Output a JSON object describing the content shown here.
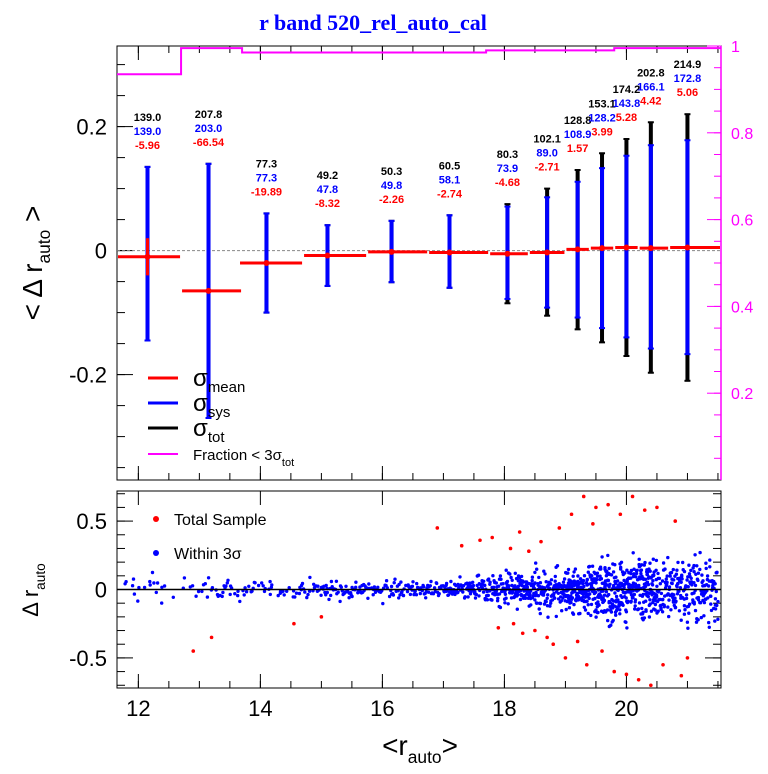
{
  "chart_data": [
    {
      "type": "scatter",
      "panel": "top",
      "title": "r band 520_rel_auto_cal",
      "ylabel_main": "< Δ r",
      "ylabel_sub": "auto",
      "ylabel_end": " >",
      "xlim": [
        11.65,
        21.55
      ],
      "ylim": [
        -0.37,
        0.33
      ],
      "xticks": [
        12,
        14,
        16,
        18,
        20
      ],
      "yticks": [
        0.2,
        0,
        -0.2
      ],
      "ytick_labels": [
        "0.2",
        "0",
        "-0.2"
      ],
      "right_axis": {
        "ylim": [
          0.0,
          1.0
        ],
        "ticks": [
          0.2,
          0.4,
          0.6,
          0.8,
          1
        ],
        "tick_labels": [
          "0.2",
          "0.4",
          "0.6",
          "0.8",
          "1"
        ],
        "color": "#ff00ff"
      },
      "bins": [
        {
          "x": 12.15,
          "xlo": 11.65,
          "xhi": 12.7,
          "mean": -0.01,
          "sigma_mean": 0.03,
          "sys_lo": -0.145,
          "sys_hi": 0.135,
          "tot_lo": -0.145,
          "tot_hi": 0.135,
          "labels": [
            "139.0",
            "139.0",
            "-5.96"
          ]
        },
        {
          "x": 13.15,
          "xlo": 12.7,
          "xhi": 13.7,
          "mean": -0.065,
          "sigma_mean": 0.0,
          "sys_lo": -0.27,
          "sys_hi": 0.14,
          "tot_lo": -0.27,
          "tot_hi": 0.14,
          "labels": [
            "207.8",
            "203.0",
            "-66.54"
          ]
        },
        {
          "x": 14.1,
          "xlo": 13.65,
          "xhi": 14.7,
          "mean": -0.02,
          "sigma_mean": 0.0,
          "sys_lo": -0.1,
          "sys_hi": 0.06,
          "tot_lo": -0.1,
          "tot_hi": 0.06,
          "labels": [
            "77.3",
            "77.3",
            "-19.89"
          ]
        },
        {
          "x": 15.1,
          "xlo": 14.7,
          "xhi": 15.75,
          "mean": -0.008,
          "sigma_mean": 0.0,
          "sys_lo": -0.057,
          "sys_hi": 0.041,
          "tot_lo": -0.057,
          "tot_hi": 0.041,
          "labels": [
            "49.2",
            "47.8",
            "-8.32"
          ]
        },
        {
          "x": 16.15,
          "xlo": 15.75,
          "xhi": 16.75,
          "mean": -0.002,
          "sigma_mean": 0.0,
          "sys_lo": -0.051,
          "sys_hi": 0.048,
          "tot_lo": -0.051,
          "tot_hi": 0.048,
          "labels": [
            "50.3",
            "49.8",
            "-2.26"
          ]
        },
        {
          "x": 17.1,
          "xlo": 16.75,
          "xhi": 17.75,
          "mean": -0.003,
          "sigma_mean": 0.0,
          "sys_lo": -0.06,
          "sys_hi": 0.057,
          "tot_lo": -0.06,
          "tot_hi": 0.057,
          "labels": [
            "60.5",
            "58.1",
            "-2.74"
          ]
        },
        {
          "x": 18.05,
          "xlo": 17.75,
          "xhi": 18.4,
          "mean": -0.005,
          "sigma_mean": 0.0,
          "sys_lo": -0.078,
          "sys_hi": 0.071,
          "tot_lo": -0.085,
          "tot_hi": 0.075,
          "labels": [
            "80.3",
            "73.9",
            "-4.68"
          ]
        },
        {
          "x": 18.7,
          "xlo": 18.4,
          "xhi": 19.0,
          "mean": -0.003,
          "sigma_mean": 0.0,
          "sys_lo": -0.092,
          "sys_hi": 0.086,
          "tot_lo": -0.105,
          "tot_hi": 0.1,
          "labels": [
            "102.1",
            "89.0",
            "-2.71"
          ]
        },
        {
          "x": 19.2,
          "xlo": 19.0,
          "xhi": 19.4,
          "mean": 0.002,
          "sigma_mean": 0.0,
          "sys_lo": -0.108,
          "sys_hi": 0.111,
          "tot_lo": -0.127,
          "tot_hi": 0.13,
          "labels": [
            "128.8",
            "108.9",
            "1.57"
          ]
        },
        {
          "x": 19.6,
          "xlo": 19.4,
          "xhi": 19.8,
          "mean": 0.004,
          "sigma_mean": 0.0,
          "sys_lo": -0.125,
          "sys_hi": 0.133,
          "tot_lo": -0.148,
          "tot_hi": 0.157,
          "labels": [
            "153.1",
            "128.2",
            "3.99"
          ]
        },
        {
          "x": 20.0,
          "xlo": 19.8,
          "xhi": 20.2,
          "mean": 0.005,
          "sigma_mean": 0.0,
          "sys_lo": -0.14,
          "sys_hi": 0.153,
          "tot_lo": -0.17,
          "tot_hi": 0.18,
          "labels": [
            "174.2",
            "143.8",
            "5.28"
          ]
        },
        {
          "x": 20.4,
          "xlo": 20.2,
          "xhi": 20.7,
          "mean": 0.004,
          "sigma_mean": 0.0,
          "sys_lo": -0.158,
          "sys_hi": 0.17,
          "tot_lo": -0.197,
          "tot_hi": 0.207,
          "labels": [
            "202.8",
            "166.1",
            "4.42"
          ]
        },
        {
          "x": 21.0,
          "xlo": 20.7,
          "xhi": 21.55,
          "mean": 0.005,
          "sigma_mean": 0.0,
          "sys_lo": -0.167,
          "sys_hi": 0.178,
          "tot_lo": -0.21,
          "tot_hi": 0.22,
          "labels": [
            "214.9",
            "172.8",
            "5.06"
          ]
        }
      ],
      "fraction_steps": [
        {
          "xlo": 11.65,
          "xhi": 12.7,
          "value": 0.935
        },
        {
          "xlo": 12.7,
          "xhi": 13.7,
          "value": 0.995
        },
        {
          "xlo": 13.7,
          "xhi": 16.6,
          "value": 0.985
        },
        {
          "xlo": 16.6,
          "xhi": 17.7,
          "value": 0.985
        },
        {
          "xlo": 17.7,
          "xhi": 18.7,
          "value": 0.99
        },
        {
          "xlo": 18.7,
          "xhi": 19.8,
          "value": 0.99
        },
        {
          "xlo": 19.8,
          "xhi": 21.55,
          "value": 0.995
        }
      ],
      "legend": [
        {
          "name": "σ",
          "sub": "mean",
          "color": "#ff0000",
          "kind": "line"
        },
        {
          "name": "σ",
          "sub": "sys",
          "color": "#0000ff",
          "kind": "line"
        },
        {
          "name": "σ",
          "sub": "tot",
          "color": "#000000",
          "kind": "line"
        },
        {
          "name": "Fraction < 3σ",
          "sub": "tot",
          "color": "#ff00ff",
          "kind": "line"
        }
      ],
      "colors": {
        "mean": "#ff0000",
        "sys": "#0000ff",
        "tot": "#000000",
        "fraction": "#ff00ff",
        "label_top": "#000000",
        "label_mid": "#0000ff",
        "label_bot": "#ff0000"
      }
    },
    {
      "type": "scatter",
      "panel": "bottom",
      "xlabel_main": "<r",
      "xlabel_sub": "auto",
      "xlabel_end": ">",
      "ylabel_main": "Δ r",
      "ylabel_sub": "auto",
      "xlim": [
        11.65,
        21.55
      ],
      "ylim": [
        -0.72,
        0.72
      ],
      "xticks": [
        12,
        14,
        16,
        18,
        20
      ],
      "xtick_labels": [
        "12",
        "14",
        "16",
        "18",
        "20"
      ],
      "yticks": [
        0.5,
        0,
        -0.5
      ],
      "ytick_labels": [
        "0.5",
        "0",
        "-0.5"
      ],
      "legend": [
        {
          "name": "Total Sample",
          "color": "#ff0000"
        },
        {
          "name": "Within 3σ",
          "color": "#0000ff"
        }
      ],
      "outliers": [
        [
          12.9,
          -0.45
        ],
        [
          13.2,
          -0.35
        ],
        [
          14.55,
          -0.25
        ],
        [
          15.0,
          -0.2
        ],
        [
          16.9,
          0.45
        ],
        [
          17.3,
          0.32
        ],
        [
          17.6,
          0.36
        ],
        [
          17.8,
          0.38
        ],
        [
          18.1,
          0.3
        ],
        [
          18.15,
          -0.25
        ],
        [
          18.3,
          -0.32
        ],
        [
          18.4,
          0.28
        ],
        [
          18.5,
          -0.3
        ],
        [
          18.6,
          0.35
        ],
        [
          18.7,
          -0.35
        ],
        [
          18.8,
          -0.4
        ],
        [
          18.9,
          0.45
        ],
        [
          19.0,
          -0.5
        ],
        [
          19.1,
          0.55
        ],
        [
          19.2,
          -0.38
        ],
        [
          19.3,
          0.68
        ],
        [
          19.35,
          -0.55
        ],
        [
          19.5,
          0.6
        ],
        [
          19.6,
          -0.45
        ],
        [
          19.7,
          0.62
        ],
        [
          19.8,
          -0.6
        ],
        [
          19.9,
          0.55
        ],
        [
          20.0,
          -0.62
        ],
        [
          20.1,
          0.68
        ],
        [
          20.2,
          -0.66
        ],
        [
          20.3,
          0.58
        ],
        [
          20.4,
          -0.7
        ],
        [
          20.5,
          0.6
        ],
        [
          20.6,
          -0.55
        ],
        [
          20.8,
          0.5
        ],
        [
          21.0,
          -0.5
        ],
        [
          20.9,
          -0.63
        ],
        [
          19.45,
          0.48
        ],
        [
          18.25,
          0.42
        ],
        [
          17.9,
          -0.28
        ]
      ],
      "colors": {
        "total": "#ff0000",
        "within": "#0000ff",
        "zero_line": "#000000"
      }
    }
  ]
}
